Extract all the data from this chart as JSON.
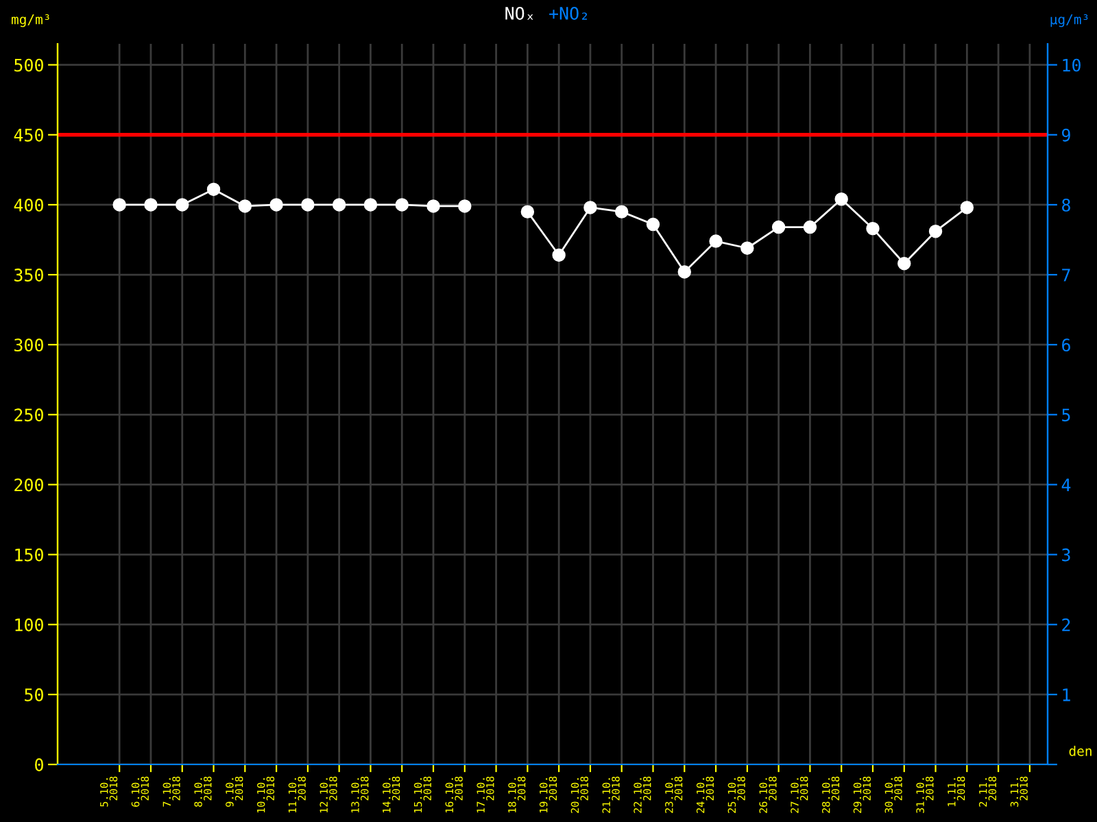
{
  "chart_data": {
    "type": "line",
    "title": "NOₓ",
    "subtitle": "+NO₂",
    "ylabel": "mg/m³",
    "y2label": "µg/m³",
    "xlabel": "den",
    "categories": [
      "5.10.\n2018",
      "6.10.\n2018",
      "7.10.\n2018",
      "8.10.\n2018",
      "9.10.\n2018",
      "10.10.\n2018",
      "11.10.\n2018",
      "12.10.\n2018",
      "13.10.\n2018",
      "14.10.\n2018",
      "15.10.\n2018",
      "16.10.\n2018",
      "17.10.\n2018",
      "18.10.\n2018",
      "19.10.\n2018",
      "20.10.\n2018",
      "21.10.\n2018",
      "22.10.\n2018",
      "23.10.\n2018",
      "24.10.\n2018",
      "25.10.\n2018",
      "26.10.\n2018",
      "27.10.\n2018",
      "28.10.\n2018",
      "29.10.\n2018",
      "30.10.\n2018",
      "31.10.\n2018",
      "1.11.\n2018",
      "2.11.\n2018",
      "3.11.\n2018"
    ],
    "series": [
      {
        "color": "#ffffff",
        "values": [
          400,
          400,
          400,
          411,
          399,
          400,
          400,
          400,
          400,
          400,
          399,
          399,
          null,
          395,
          364,
          398,
          395,
          386,
          352,
          374,
          369,
          384,
          384,
          404,
          383,
          358,
          381,
          398,
          null,
          null
        ]
      }
    ],
    "ylim": [
      0,
      515
    ],
    "yticks": [
      0,
      50,
      100,
      150,
      200,
      250,
      300,
      350,
      400,
      450,
      500
    ],
    "y2lim": [
      0,
      10.3
    ],
    "y2ticks": [
      {
        "value": 0,
        "label": null
      },
      1,
      2,
      3,
      4,
      5,
      6,
      7,
      8,
      9,
      10
    ],
    "ref_lines": [
      {
        "axis": "y",
        "value": 450,
        "color": "#ff0000"
      }
    ],
    "grid": true,
    "marker": "circle",
    "line_style": "solid"
  }
}
